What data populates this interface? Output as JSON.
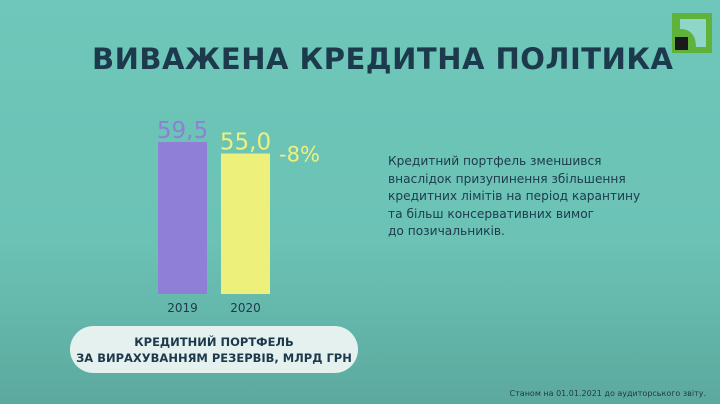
{
  "title": "ВИВАЖЕНА КРЕДИТНА ПОЛІТИКА",
  "logo": "privatbank-logo",
  "colors": {
    "bar_2019": "#8f7fd6",
    "bar_2020": "#eef07c",
    "label_2019": "#8f7fd6",
    "label_2020": "#eef07c",
    "title": "#1d3a4c"
  },
  "chart_data": {
    "type": "bar",
    "categories": [
      "2019",
      "2020"
    ],
    "values": [
      59.5,
      55.0
    ],
    "data_labels": [
      "59,5",
      "55,0"
    ],
    "annotation": "-8%",
    "ylim": [
      0,
      59.5
    ],
    "grid": false,
    "axis_visible": false
  },
  "description": "Кредитний портфель зменшився\nвнаслідок призупинення збільшення\nкредитних лімітів на період карантину\nта більш консервативних вимог\nдо позичальників.",
  "caption": {
    "line1": "КРЕДИТНИЙ ПОРТФЕЛЬ",
    "line2": "ЗА ВИРАХУВАННЯМ РЕЗЕРВІВ, МЛРД ГРН"
  },
  "footnote": "Станом на 01.01.2021 до аудиторського звіту."
}
